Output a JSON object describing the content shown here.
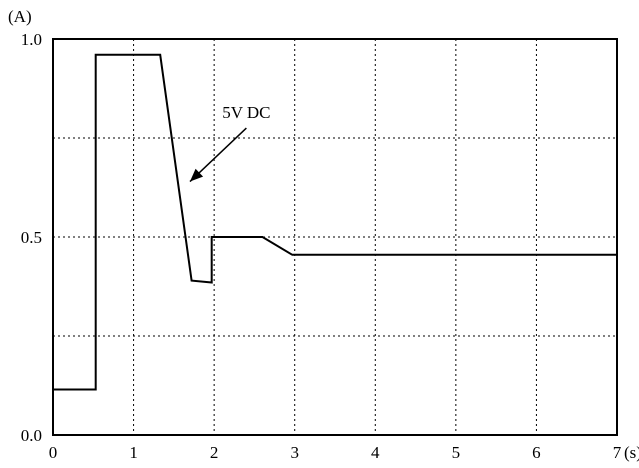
{
  "chart_data": {
    "type": "line",
    "title": "",
    "xlabel": "",
    "ylabel": "",
    "y_unit_label": "(A)",
    "x_unit_label": "(s)",
    "xlim": [
      0,
      7
    ],
    "ylim": [
      0,
      1
    ],
    "x_ticks": [
      0,
      1,
      2,
      3,
      4,
      5,
      6,
      7
    ],
    "x_tick_labels": [
      "0",
      "1",
      "2",
      "3",
      "4",
      "5",
      "6",
      "7"
    ],
    "y_ticks": [
      0,
      0.5,
      1
    ],
    "y_tick_labels": [
      "0.0",
      "0.5",
      "1.0"
    ],
    "x_gridlines": [
      1,
      2,
      3,
      4,
      5,
      6
    ],
    "y_gridlines": [
      0.25,
      0.5,
      0.75
    ],
    "grid": true,
    "grid_style": "dotted",
    "series": [
      {
        "color": "#000000",
        "x": [
          0,
          0.53,
          0.53,
          1.33,
          1.72,
          1.97,
          1.97,
          2.6,
          2.97,
          7
        ],
        "y": [
          0.115,
          0.115,
          0.96,
          0.96,
          0.39,
          0.385,
          0.5,
          0.5,
          0.455,
          0.455
        ]
      }
    ],
    "annotations": [
      {
        "text": "5V DC",
        "text_at": [
          2.1,
          0.8
        ],
        "arrow_from": [
          2.4,
          0.775
        ],
        "arrow_to": [
          1.7,
          0.64
        ]
      }
    ]
  }
}
